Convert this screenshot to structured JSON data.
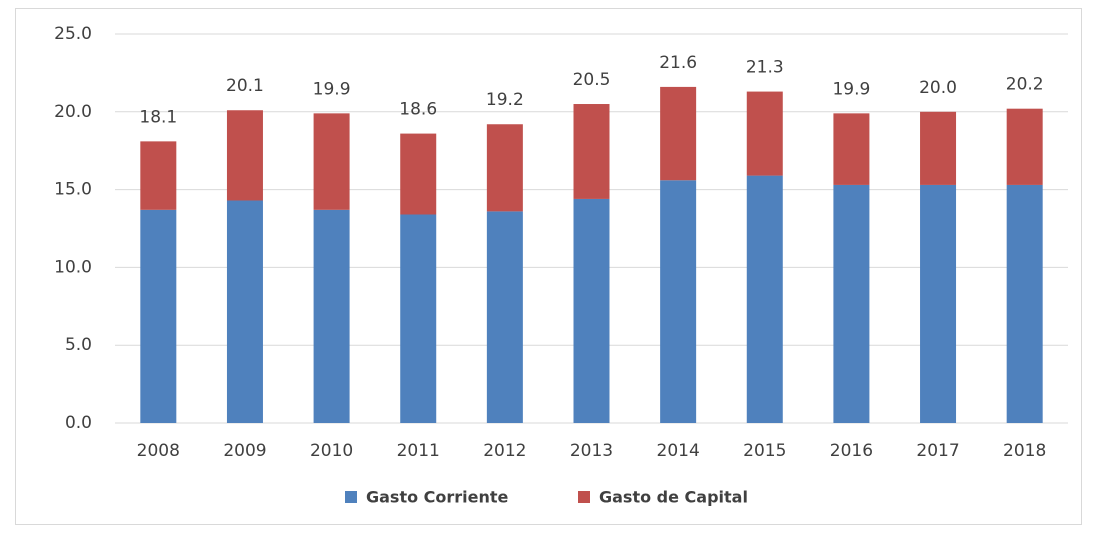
{
  "chart_data": {
    "type": "stacked_bar",
    "categories": [
      "2008",
      "2009",
      "2010",
      "2011",
      "2012",
      "2013",
      "2014",
      "2015",
      "2016",
      "2017",
      "2018"
    ],
    "series": [
      {
        "name": "Gasto Corriente",
        "color": "#4f81bd",
        "values": [
          13.7,
          14.3,
          13.7,
          13.4,
          13.6,
          14.4,
          15.6,
          15.9,
          15.3,
          15.3,
          15.3
        ]
      },
      {
        "name": "Gasto de Capital",
        "color": "#c0504d",
        "values": [
          4.4,
          5.8,
          6.2,
          5.2,
          5.6,
          6.1,
          6.0,
          5.4,
          4.6,
          4.7,
          4.9
        ]
      }
    ],
    "totals": [
      18.1,
      20.1,
      19.9,
      18.6,
      19.2,
      20.5,
      21.6,
      21.3,
      19.9,
      20.0,
      20.2
    ],
    "total_labels": [
      "18.1",
      "20.1",
      "19.9",
      "18.6",
      "19.2",
      "20.5",
      "21.6",
      "21.3",
      "19.9",
      "20.0",
      "20.2"
    ],
    "ylim": [
      0,
      25
    ],
    "yticks": [
      {
        "value": 0,
        "label": "0.0"
      },
      {
        "value": 5,
        "label": "5.0"
      },
      {
        "value": 10,
        "label": "10.0"
      },
      {
        "value": 15,
        "label": "15.0"
      },
      {
        "value": 20,
        "label": "20.0"
      },
      {
        "value": 25,
        "label": "25.0"
      }
    ],
    "grid": true,
    "legend": "bottom"
  }
}
